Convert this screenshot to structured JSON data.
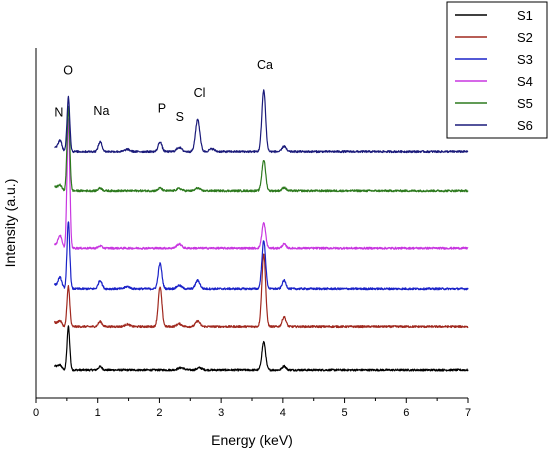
{
  "chart_data": {
    "type": "line",
    "xlabel": "Energy (keV)",
    "ylabel": "Intensity (a.u.)",
    "xlim": [
      0,
      7
    ],
    "x_ticks": [
      "0",
      "1",
      "2",
      "3",
      "4",
      "5",
      "6",
      "7"
    ],
    "legend_position": "top-right",
    "grid": false,
    "stacked_offset": true,
    "series": [
      {
        "name": "S1",
        "color": "#000000",
        "baseline": 1.0,
        "peaks": [
          [
            0.39,
            0.03,
            0.12
          ],
          [
            0.525,
            0.022,
            1.55
          ],
          [
            1.04,
            0.03,
            0.12
          ],
          [
            2.35,
            0.05,
            0.08
          ],
          [
            2.65,
            0.04,
            0.08
          ],
          [
            3.69,
            0.03,
            1.0
          ],
          [
            4.02,
            0.03,
            0.14
          ]
        ]
      },
      {
        "name": "S2",
        "color": "#a0281e",
        "baseline": 2.55,
        "peaks": [
          [
            0.39,
            0.03,
            0.15
          ],
          [
            0.525,
            0.022,
            1.45
          ],
          [
            1.04,
            0.03,
            0.18
          ],
          [
            1.48,
            0.04,
            0.08
          ],
          [
            2.01,
            0.03,
            1.4
          ],
          [
            2.32,
            0.04,
            0.1
          ],
          [
            2.62,
            0.035,
            0.2
          ],
          [
            3.69,
            0.03,
            2.6
          ],
          [
            4.02,
            0.03,
            0.35
          ]
        ]
      },
      {
        "name": "S3",
        "color": "#1a22c8",
        "baseline": 3.9,
        "peaks": [
          [
            0.39,
            0.03,
            0.35
          ],
          [
            0.525,
            0.022,
            2.4
          ],
          [
            1.04,
            0.03,
            0.3
          ],
          [
            1.48,
            0.04,
            0.08
          ],
          [
            2.01,
            0.03,
            0.9
          ],
          [
            2.32,
            0.04,
            0.12
          ],
          [
            2.62,
            0.035,
            0.3
          ],
          [
            3.69,
            0.03,
            1.7
          ],
          [
            4.02,
            0.03,
            0.3
          ]
        ]
      },
      {
        "name": "S4",
        "color": "#c837e0",
        "baseline": 5.35,
        "peaks": [
          [
            0.39,
            0.03,
            0.4
          ],
          [
            0.525,
            0.022,
            4.6
          ],
          [
            1.04,
            0.03,
            0.08
          ],
          [
            2.32,
            0.04,
            0.15
          ],
          [
            3.69,
            0.03,
            0.9
          ],
          [
            4.02,
            0.03,
            0.15
          ]
        ]
      },
      {
        "name": "S5",
        "color": "#2d7a1e",
        "baseline": 7.4,
        "peaks": [
          [
            0.39,
            0.03,
            0.15
          ],
          [
            0.525,
            0.022,
            3.0
          ],
          [
            1.04,
            0.03,
            0.1
          ],
          [
            2.01,
            0.03,
            0.1
          ],
          [
            2.32,
            0.04,
            0.08
          ],
          [
            2.62,
            0.035,
            0.1
          ],
          [
            3.69,
            0.03,
            1.1
          ],
          [
            4.02,
            0.03,
            0.12
          ]
        ]
      },
      {
        "name": "S6",
        "color": "#1a1a7a",
        "baseline": 8.8,
        "peaks": [
          [
            0.39,
            0.03,
            0.35
          ],
          [
            0.525,
            0.022,
            1.95
          ],
          [
            1.04,
            0.03,
            0.35
          ],
          [
            1.48,
            0.04,
            0.08
          ],
          [
            2.01,
            0.03,
            0.35
          ],
          [
            2.32,
            0.04,
            0.15
          ],
          [
            2.62,
            0.035,
            1.15
          ],
          [
            2.85,
            0.04,
            0.1
          ],
          [
            3.69,
            0.03,
            2.2
          ],
          [
            4.02,
            0.03,
            0.2
          ]
        ]
      }
    ],
    "annotations": [
      {
        "text": "N",
        "x": 0.37,
        "y": 10.05
      },
      {
        "text": "O",
        "x": 0.52,
        "y": 11.55
      },
      {
        "text": "Na",
        "x": 1.06,
        "y": 10.1
      },
      {
        "text": "P",
        "x": 2.04,
        "y": 10.2
      },
      {
        "text": "S",
        "x": 2.33,
        "y": 9.9
      },
      {
        "text": "Cl",
        "x": 2.65,
        "y": 10.75
      },
      {
        "text": "Ca",
        "x": 3.71,
        "y": 11.75
      }
    ]
  }
}
